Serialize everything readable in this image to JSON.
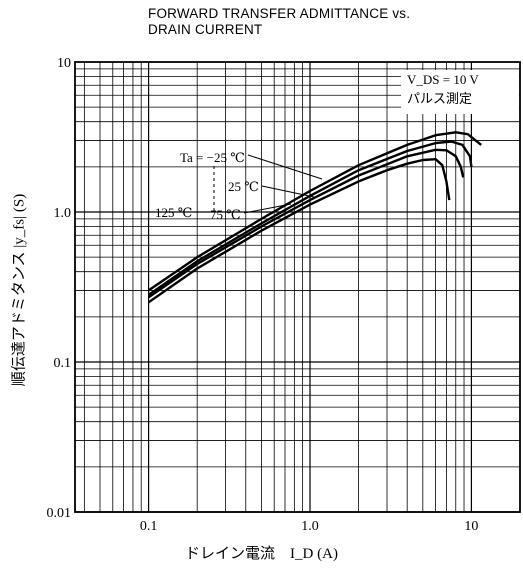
{
  "chart_data": {
    "type": "line",
    "title": "FORWARD TRANSFER ADMITTANCE vs.",
    "subtitle": "DRAIN CURRENT",
    "xlabel": "ドレイン電流　I_D (A)",
    "ylabel": "順伝達アドミタンス |y_fs| (S)",
    "xscale": "log",
    "yscale": "log",
    "xlim": [
      0.035,
      20
    ],
    "ylim": [
      0.01,
      10
    ],
    "xticks": [
      0.1,
      1.0,
      10
    ],
    "xticklabels": [
      "0.1",
      "1.0",
      "10"
    ],
    "yticks": [
      0.01,
      0.1,
      1.0,
      10
    ],
    "yticklabels": [
      "0.01",
      "0.1",
      "1.0",
      "10"
    ],
    "grid": true,
    "annotation": {
      "line1": "V_DS = 10 V",
      "line2": "パルス測定"
    },
    "series": [
      {
        "name": "Ta = −25 ℃",
        "x": [
          0.1,
          0.2,
          0.5,
          1.0,
          2.0,
          4.0,
          6.0,
          8.0,
          9.5,
          11.5
        ],
        "y": [
          0.3,
          0.5,
          0.9,
          1.38,
          2.05,
          2.8,
          3.25,
          3.4,
          3.3,
          2.8
        ]
      },
      {
        "name": "25 ℃",
        "x": [
          0.1,
          0.2,
          0.5,
          1.0,
          2.0,
          4.0,
          6.0,
          7.5,
          8.8,
          9.8,
          10.0
        ],
        "y": [
          0.28,
          0.47,
          0.84,
          1.28,
          1.9,
          2.55,
          2.88,
          2.95,
          2.8,
          2.35,
          2.0
        ]
      },
      {
        "name": "75 ℃",
        "x": [
          0.1,
          0.2,
          0.5,
          1.0,
          2.0,
          4.0,
          6.0,
          7.0,
          8.0,
          8.6,
          8.9
        ],
        "y": [
          0.27,
          0.45,
          0.8,
          1.2,
          1.75,
          2.35,
          2.6,
          2.58,
          2.35,
          2.0,
          1.7
        ]
      },
      {
        "name": "125 ℃",
        "x": [
          0.1,
          0.2,
          0.5,
          1.0,
          2.0,
          3.0,
          4.0,
          5.0,
          6.0,
          6.6,
          7.0,
          7.3
        ],
        "y": [
          0.25,
          0.42,
          0.75,
          1.12,
          1.6,
          1.9,
          2.1,
          2.22,
          2.25,
          2.05,
          1.6,
          1.2
        ]
      }
    ],
    "curve_labels": [
      {
        "text": "Ta = −25 ℃",
        "ref": 0
      },
      {
        "text": "25 ℃",
        "ref": 1
      },
      {
        "text": "75 ℃",
        "ref": 2
      },
      {
        "text": "125 ℃",
        "ref": 3
      }
    ]
  },
  "labels": {
    "title_line1": "FORWARD TRANSFER ADMITTANCE vs.",
    "title_line2": "DRAIN CURRENT",
    "cond_line1": "V_DS = 10 V",
    "cond_line2": "パルス測定",
    "xlabel": "ドレイン電流　I_D (A)",
    "ylabel": "順伝達アドミタンス |y_fs| (S)"
  }
}
